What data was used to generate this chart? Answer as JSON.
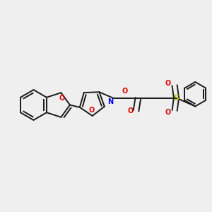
{
  "background_color": "#efefef",
  "bond_color": "#1a1a1a",
  "oxygen_color": "#dd0000",
  "nitrogen_color": "#0000ee",
  "sulfur_color": "#bbbb00",
  "lw": 1.4,
  "figsize": [
    3.0,
    3.0
  ],
  "dpi": 100,
  "xlim": [
    0,
    10
  ],
  "ylim": [
    0,
    10
  ]
}
